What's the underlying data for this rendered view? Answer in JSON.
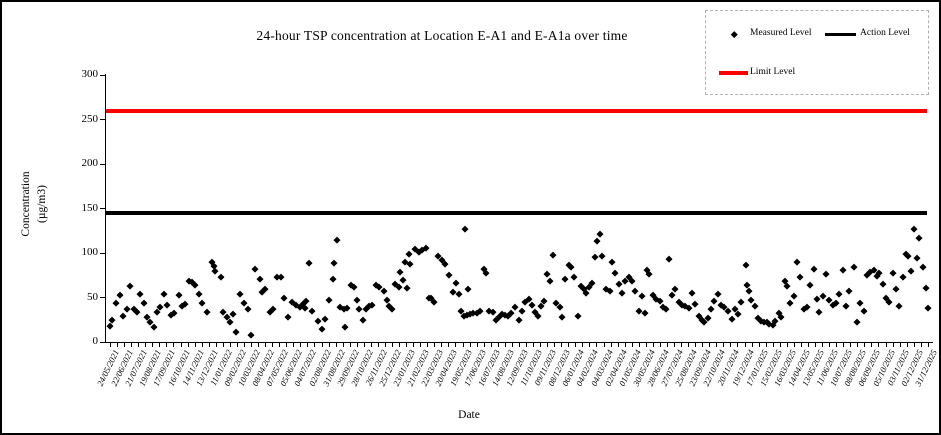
{
  "title": "24-hour TSP concentration at Location E-A1 and E-A1a over time",
  "x_axis_title": "Date",
  "y_axis_title_line1": "Concentration",
  "y_axis_title_line2": "(µg/m3)",
  "legend": {
    "measured_label": "Measured Level",
    "action_label": "Action Level",
    "limit_label": "Limit Level"
  },
  "colors": {
    "measured": "#000000",
    "action": "#000000",
    "limit": "#FF0000"
  },
  "chart_data": {
    "type": "scatter",
    "title": "24-hour TSP concentration at Location E-A1 and E-A1a over time",
    "xlabel": "Date",
    "ylabel": "Concentration (µg/m3)",
    "ylim": [
      0,
      300
    ],
    "y_ticks": [
      0,
      50,
      100,
      150,
      200,
      250,
      300
    ],
    "grid": false,
    "legend_position": "top-right",
    "x_tick_labels": [
      "24/05/2021",
      "22/06/2021",
      "21/07/2021",
      "19/08/2021",
      "17/09/2021",
      "16/10/2021",
      "14/11/2021",
      "13/12/2021",
      "11/01/2022",
      "09/02/2022",
      "10/03/2022",
      "08/04/2022",
      "07/05/2022",
      "05/06/2022",
      "04/07/2022",
      "02/08/2022",
      "31/08/2022",
      "29/09/2022",
      "28/10/2022",
      "26/11/2022",
      "25/12/2022",
      "23/01/2023",
      "21/02/2023",
      "22/03/2023",
      "20/04/2023",
      "19/05/2023",
      "17/06/2023",
      "16/07/2023",
      "14/08/2023",
      "12/09/2023",
      "11/10/2023",
      "09/11/2023",
      "08/12/2023",
      "06/01/2024",
      "04/02/2024",
      "04/03/2024",
      "02/04/2024",
      "01/05/2024",
      "30/05/2024",
      "28/06/2024",
      "27/07/2024",
      "25/08/2024",
      "23/09/2024",
      "22/10/2024",
      "20/11/2024",
      "19/12/2024",
      "17/01/2025",
      "15/02/2025",
      "16/03/2025",
      "14/04/2025",
      "13/05/2025",
      "11/06/2025",
      "10/07/2025",
      "08/08/2025",
      "06/09/2025",
      "05/10/2025",
      "03/11/2025",
      "02/12/2025",
      "31/12/2025"
    ],
    "reference_lines": [
      {
        "name": "Action Level",
        "value": 145,
        "color": "#000000",
        "thickness": 3.5
      },
      {
        "name": "Limit Level",
        "value": 260,
        "color": "#FF0000",
        "thickness": 4
      }
    ],
    "series": [
      {
        "name": "Measured Level",
        "marker": "diamond",
        "color": "#000000",
        "points": [
          [
            0,
            18
          ],
          [
            0.15,
            25
          ],
          [
            0.43,
            44
          ],
          [
            0.71,
            53
          ],
          [
            0.92,
            29
          ],
          [
            1.21,
            37
          ],
          [
            1.42,
            63
          ],
          [
            1.7,
            37
          ],
          [
            1.91,
            34
          ],
          [
            2.13,
            54
          ],
          [
            2.41,
            44
          ],
          [
            2.62,
            28
          ],
          [
            2.84,
            23
          ],
          [
            3.12,
            17
          ],
          [
            3.33,
            34
          ],
          [
            3.55,
            39
          ],
          [
            3.83,
            54
          ],
          [
            4.04,
            42
          ],
          [
            4.33,
            30
          ],
          [
            4.54,
            33
          ],
          [
            4.89,
            53
          ],
          [
            5.11,
            41
          ],
          [
            5.32,
            43
          ],
          [
            5.6,
            69
          ],
          [
            5.82,
            67
          ],
          [
            6.03,
            64
          ],
          [
            6.31,
            54
          ],
          [
            6.52,
            44
          ],
          [
            6.88,
            34
          ],
          [
            7.23,
            90
          ],
          [
            7.38,
            85
          ],
          [
            7.45,
            80
          ],
          [
            7.87,
            73
          ],
          [
            8.01,
            34
          ],
          [
            8.3,
            28
          ],
          [
            8.51,
            23
          ],
          [
            8.72,
            32
          ],
          [
            8.94,
            11
          ],
          [
            9.22,
            54
          ],
          [
            9.5,
            44
          ],
          [
            9.79,
            37
          ],
          [
            10,
            8
          ],
          [
            10.28,
            82
          ],
          [
            10.64,
            71
          ],
          [
            10.78,
            56
          ],
          [
            10.99,
            59
          ],
          [
            11.35,
            34
          ],
          [
            11.56,
            37
          ],
          [
            11.84,
            73
          ],
          [
            12.13,
            73
          ],
          [
            12.34,
            49
          ],
          [
            12.62,
            28
          ],
          [
            12.91,
            45
          ],
          [
            13.19,
            42
          ],
          [
            13.48,
            39
          ],
          [
            13.69,
            43
          ],
          [
            13.83,
            38
          ],
          [
            13.9,
            46
          ],
          [
            14.11,
            89
          ],
          [
            14.33,
            35
          ],
          [
            14.75,
            24
          ],
          [
            15.04,
            15
          ],
          [
            15.25,
            26
          ],
          [
            15.53,
            47
          ],
          [
            15.82,
            71
          ],
          [
            15.89,
            89
          ],
          [
            16.1,
            115
          ],
          [
            16.31,
            39
          ],
          [
            16.6,
            37
          ],
          [
            16.67,
            17
          ],
          [
            16.81,
            38
          ],
          [
            17.09,
            64
          ],
          [
            17.3,
            62
          ],
          [
            17.52,
            47
          ],
          [
            17.66,
            37
          ],
          [
            17.94,
            25
          ],
          [
            18.16,
            37
          ],
          [
            18.37,
            41
          ],
          [
            18.58,
            42
          ],
          [
            18.87,
            64
          ],
          [
            19.08,
            62
          ],
          [
            19.43,
            57
          ],
          [
            19.65,
            47
          ],
          [
            19.79,
            41
          ],
          [
            20,
            37
          ],
          [
            20.21,
            65
          ],
          [
            20.5,
            62
          ],
          [
            20.57,
            79
          ],
          [
            20.78,
            70
          ],
          [
            20.92,
            90
          ],
          [
            21.06,
            61
          ],
          [
            21.21,
            99
          ],
          [
            21.28,
            88
          ],
          [
            21.63,
            104
          ],
          [
            21.91,
            101
          ],
          [
            22.13,
            103
          ],
          [
            22.41,
            106
          ],
          [
            22.62,
            49
          ],
          [
            22.77,
            50
          ],
          [
            22.98,
            45
          ],
          [
            23.26,
            97
          ],
          [
            23.55,
            92
          ],
          [
            23.76,
            88
          ],
          [
            24.04,
            75
          ],
          [
            24.33,
            56
          ],
          [
            24.54,
            66
          ],
          [
            24.75,
            54
          ],
          [
            24.89,
            35
          ],
          [
            25.11,
            29
          ],
          [
            25.18,
            127
          ],
          [
            25.32,
            30
          ],
          [
            25.39,
            59
          ],
          [
            25.53,
            31
          ],
          [
            25.74,
            33
          ],
          [
            26.03,
            33
          ],
          [
            26.24,
            35
          ],
          [
            26.52,
            82
          ],
          [
            26.67,
            78
          ],
          [
            26.88,
            35
          ],
          [
            27.16,
            34
          ],
          [
            27.38,
            25
          ],
          [
            27.59,
            28
          ],
          [
            27.8,
            31
          ],
          [
            28.01,
            30
          ],
          [
            28.23,
            29
          ],
          [
            28.44,
            33
          ],
          [
            28.72,
            39
          ],
          [
            29.01,
            25
          ],
          [
            29.22,
            35
          ],
          [
            29.43,
            45
          ],
          [
            29.72,
            48
          ],
          [
            29.93,
            42
          ],
          [
            30.14,
            34
          ],
          [
            30.35,
            29
          ],
          [
            30.57,
            41
          ],
          [
            30.78,
            46
          ],
          [
            30.99,
            76
          ],
          [
            31.21,
            68
          ],
          [
            31.42,
            98
          ],
          [
            31.63,
            44
          ],
          [
            31.91,
            39
          ],
          [
            32.06,
            28
          ],
          [
            32.27,
            71
          ],
          [
            32.55,
            87
          ],
          [
            32.7,
            84
          ],
          [
            32.91,
            73
          ],
          [
            33.19,
            29
          ],
          [
            33.4,
            63
          ],
          [
            33.62,
            59
          ],
          [
            33.76,
            55
          ],
          [
            33.97,
            62
          ],
          [
            34.18,
            66
          ],
          [
            34.4,
            96
          ],
          [
            34.54,
            114
          ],
          [
            34.75,
            121
          ],
          [
            34.89,
            97
          ],
          [
            35.18,
            60
          ],
          [
            35.46,
            57
          ],
          [
            35.6,
            90
          ],
          [
            35.82,
            77
          ],
          [
            36.1,
            65
          ],
          [
            36.31,
            55
          ],
          [
            36.52,
            68
          ],
          [
            36.81,
            73
          ],
          [
            37.02,
            68
          ],
          [
            37.23,
            57
          ],
          [
            37.52,
            35
          ],
          [
            37.73,
            52
          ],
          [
            37.94,
            33
          ],
          [
            38.09,
            81
          ],
          [
            38.23,
            76
          ],
          [
            38.51,
            53
          ],
          [
            38.72,
            48
          ],
          [
            39.01,
            46
          ],
          [
            39.22,
            39
          ],
          [
            39.43,
            37
          ],
          [
            39.65,
            93
          ],
          [
            39.86,
            53
          ],
          [
            40.07,
            59
          ],
          [
            40.35,
            45
          ],
          [
            40.57,
            42
          ],
          [
            40.78,
            41
          ],
          [
            41.06,
            38
          ],
          [
            41.28,
            55
          ],
          [
            41.49,
            43
          ],
          [
            41.77,
            29
          ],
          [
            41.99,
            25
          ],
          [
            42.13,
            22
          ],
          [
            42.41,
            27
          ],
          [
            42.62,
            37
          ],
          [
            42.84,
            46
          ],
          [
            43.12,
            54
          ],
          [
            43.33,
            42
          ],
          [
            43.55,
            39
          ],
          [
            43.83,
            35
          ],
          [
            44.11,
            26
          ],
          [
            44.33,
            37
          ],
          [
            44.54,
            32
          ],
          [
            44.75,
            45
          ],
          [
            45.11,
            87
          ],
          [
            45.18,
            64
          ],
          [
            45.32,
            57
          ],
          [
            45.46,
            47
          ],
          [
            45.74,
            41
          ],
          [
            45.96,
            27
          ],
          [
            46.17,
            24
          ],
          [
            46.38,
            22
          ],
          [
            46.6,
            23
          ],
          [
            46.74,
            20
          ],
          [
            47.02,
            19
          ],
          [
            47.16,
            24
          ],
          [
            47.45,
            33
          ],
          [
            47.59,
            28
          ],
          [
            47.87,
            68
          ],
          [
            48.01,
            63
          ],
          [
            48.23,
            44
          ],
          [
            48.51,
            52
          ],
          [
            48.72,
            90
          ],
          [
            48.94,
            73
          ],
          [
            49.22,
            37
          ],
          [
            49.43,
            39
          ],
          [
            49.65,
            64
          ],
          [
            49.93,
            82
          ],
          [
            50.14,
            48
          ],
          [
            50.28,
            34
          ],
          [
            50.57,
            52
          ],
          [
            50.78,
            76
          ],
          [
            50.99,
            47
          ],
          [
            51.28,
            42
          ],
          [
            51.49,
            44
          ],
          [
            51.7,
            54
          ],
          [
            51.99,
            81
          ],
          [
            52.2,
            41
          ],
          [
            52.41,
            57
          ],
          [
            52.77,
            84
          ],
          [
            52.98,
            23
          ],
          [
            53.19,
            44
          ],
          [
            53.48,
            35
          ],
          [
            53.69,
            75
          ],
          [
            53.9,
            79
          ],
          [
            54.18,
            81
          ],
          [
            54.4,
            74
          ],
          [
            54.54,
            77
          ],
          [
            54.82,
            65
          ],
          [
            55.04,
            50
          ],
          [
            55.25,
            45
          ],
          [
            55.53,
            77
          ],
          [
            55.74,
            60
          ],
          [
            55.96,
            41
          ],
          [
            56.24,
            73
          ],
          [
            56.45,
            99
          ],
          [
            56.6,
            97
          ],
          [
            56.81,
            80
          ],
          [
            57.02,
            127
          ],
          [
            57.23,
            94
          ],
          [
            57.38,
            117
          ],
          [
            57.66,
            84
          ],
          [
            57.87,
            61
          ],
          [
            58,
            38
          ]
        ]
      }
    ]
  }
}
